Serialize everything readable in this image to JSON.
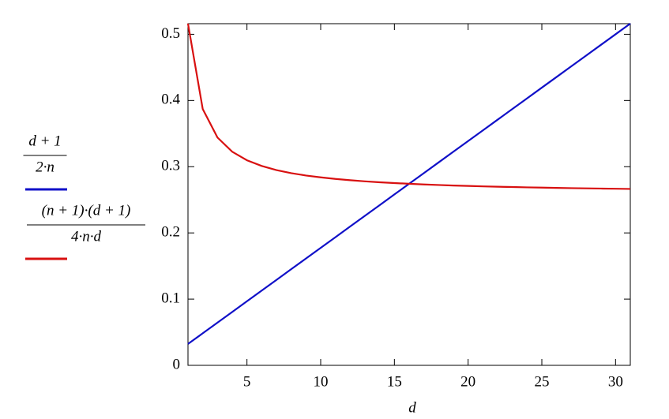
{
  "chart_data": {
    "type": "line",
    "x_label": "d",
    "x": [
      1,
      2,
      3,
      4,
      5,
      6,
      7,
      8,
      9,
      10,
      11,
      12,
      13,
      14,
      15,
      16,
      17,
      18,
      19,
      20,
      21,
      22,
      23,
      24,
      25,
      26,
      27,
      28,
      29,
      30,
      31
    ],
    "series": [
      {
        "name": [
          "d + 1",
          "2·n"
        ],
        "color": "#1010c8",
        "values": [
          0.0323,
          0.0484,
          0.0645,
          0.0806,
          0.0968,
          0.1129,
          0.129,
          0.1452,
          0.1613,
          0.1774,
          0.1935,
          0.2097,
          0.2258,
          0.2419,
          0.2581,
          0.2742,
          0.2903,
          0.3065,
          0.3226,
          0.3387,
          0.3548,
          0.371,
          0.3871,
          0.4032,
          0.4194,
          0.4355,
          0.4516,
          0.4677,
          0.4839,
          0.5,
          0.5161
        ]
      },
      {
        "name": [
          "(n + 1)·(d + 1)",
          "4·n·d"
        ],
        "color": "#d81010",
        "values": [
          0.5161,
          0.3871,
          0.3441,
          0.3226,
          0.3097,
          0.3011,
          0.2949,
          0.2903,
          0.2867,
          0.2839,
          0.2815,
          0.2796,
          0.2779,
          0.2765,
          0.2753,
          0.2742,
          0.2732,
          0.2724,
          0.2716,
          0.271,
          0.2703,
          0.2698,
          0.2693,
          0.2688,
          0.2684,
          0.268,
          0.2676,
          0.2673,
          0.267,
          0.2667,
          0.2664
        ]
      }
    ],
    "xlim": [
      1,
      31
    ],
    "xticks": [
      5,
      10,
      15,
      20,
      25,
      30
    ],
    "ylim": [
      0,
      0.516
    ],
    "yticks": [
      0,
      0.1,
      0.2,
      0.3,
      0.4,
      0.5
    ],
    "grid": false
  }
}
